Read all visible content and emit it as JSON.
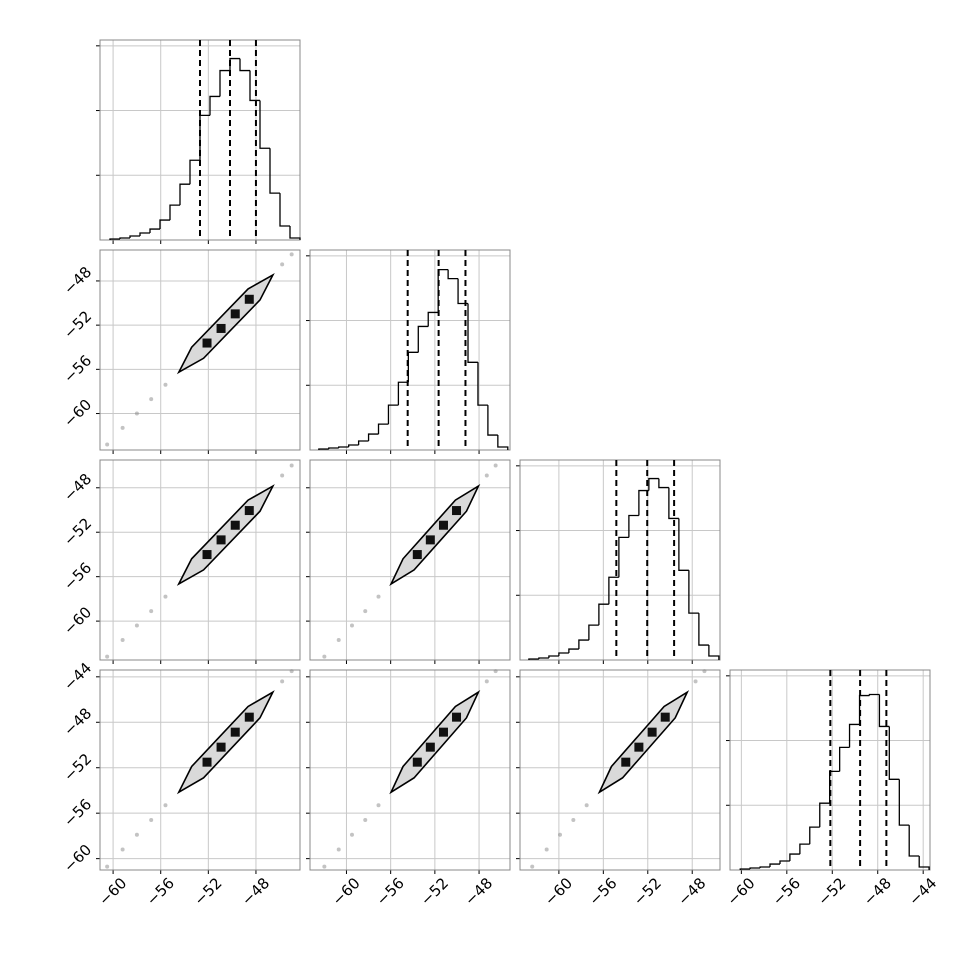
{
  "chart_data": {
    "type": "corner",
    "grid": true,
    "color": "#000000",
    "variables": [
      {
        "lim": [
          -61.1,
          -44.3
        ],
        "ticks": [
          {
            "value": -60,
            "label": "−60"
          },
          {
            "value": -56,
            "label": "−56"
          },
          {
            "value": -52,
            "label": "−52"
          },
          {
            "value": -48,
            "label": "−48"
          }
        ]
      },
      {
        "lim": [
          -63.3,
          -45.2
        ],
        "ticks": [
          {
            "value": -60,
            "label": "−60"
          },
          {
            "value": -56,
            "label": "−56"
          },
          {
            "value": -52,
            "label": "−52"
          },
          {
            "value": -48,
            "label": "−48"
          }
        ]
      },
      {
        "lim": [
          -63.5,
          -45.5
        ],
        "ticks": [
          {
            "value": -60,
            "label": "−60"
          },
          {
            "value": -56,
            "label": "−56"
          },
          {
            "value": -52,
            "label": "−52"
          },
          {
            "value": -48,
            "label": "−48"
          }
        ]
      },
      {
        "lim": [
          -61.0,
          -43.4
        ],
        "ticks": [
          {
            "value": -60,
            "label": "−60"
          },
          {
            "value": -56,
            "label": "−56"
          },
          {
            "value": -52,
            "label": "−52"
          },
          {
            "value": -48,
            "label": "−48"
          },
          {
            "value": -44,
            "label": "−44"
          }
        ]
      }
    ],
    "histograms": [
      {
        "bins": [
          -60.26,
          -59.42,
          -58.58,
          -57.74,
          -56.9,
          -56.06,
          -55.22,
          -54.38,
          -53.54,
          -52.7,
          -51.86,
          -51.02,
          -50.18,
          -49.34,
          -48.5,
          -47.66,
          -46.82,
          -45.98,
          -45.14,
          -44.3
        ],
        "counts": [
          15,
          31,
          62,
          108,
          169,
          308,
          539,
          862,
          1232,
          1925,
          2218,
          2618,
          2803,
          2618,
          2156,
          1417,
          724,
          216,
          31
        ],
        "quantiles": [
          -52.7,
          -50.18,
          -48.0
        ],
        "ylim": [
          0,
          3090
        ],
        "yticks": [
          1000,
          2000,
          3000
        ]
      },
      {
        "bins": [
          -62.5,
          -61.6,
          -60.7,
          -59.8,
          -58.9,
          -58.0,
          -57.1,
          -56.2,
          -55.3,
          -54.4,
          -53.5,
          -52.6,
          -51.7,
          -50.8,
          -49.9,
          -49.0,
          -48.1,
          -47.2,
          -46.3,
          -45.4
        ],
        "counts": [
          15,
          31,
          46,
          77,
          139,
          246,
          400,
          693,
          1047,
          1509,
          1909,
          2125,
          2787,
          2648,
          2264,
          1355,
          693,
          231,
          46
        ],
        "quantiles": [
          -54.46,
          -51.66,
          -49.23
        ],
        "ylim": [
          0,
          3090
        ],
        "yticks": [
          1000,
          2000,
          3000
        ]
      },
      {
        "bins": [
          -62.7,
          -61.8,
          -60.9,
          -60.0,
          -59.1,
          -58.2,
          -57.3,
          -56.4,
          -55.5,
          -54.6,
          -53.7,
          -52.8,
          -51.9,
          -51.0,
          -50.1,
          -49.2,
          -48.3,
          -47.4,
          -46.5,
          -45.6
        ],
        "counts": [
          15,
          31,
          62,
          108,
          169,
          308,
          539,
          862,
          1278,
          1894,
          2233,
          2618,
          2803,
          2664,
          2187,
          1386,
          724,
          231,
          62
        ],
        "quantiles": [
          -54.83,
          -52.05,
          -49.63
        ],
        "ylim": [
          0,
          3090
        ],
        "yticks": [
          1000,
          2000,
          3000
        ]
      },
      {
        "bins": [
          -60.1,
          -59.23,
          -58.35,
          -57.48,
          -56.6,
          -55.73,
          -54.85,
          -53.98,
          -53.1,
          -52.23,
          -51.35,
          -50.48,
          -49.6,
          -48.73,
          -47.85,
          -46.98,
          -46.1,
          -45.23,
          -44.35,
          -43.48
        ],
        "counts": [
          15,
          31,
          46,
          92,
          139,
          246,
          400,
          662,
          1032,
          1524,
          1894,
          2249,
          2695,
          2711,
          2218,
          1401,
          693,
          216,
          46
        ],
        "quantiles": [
          -52.17,
          -49.55,
          -47.24
        ],
        "ylim": [
          0,
          3090
        ],
        "yticks": [
          1000,
          2000,
          3000
        ]
      }
    ],
    "pairs": [
      {
        "contour": {
          "x": [
            -54.48,
            -52.4,
            -50.03,
            -47.66,
            -46.58,
            -48.66,
            -51.03,
            -53.4
          ],
          "y": [
            -56.26,
            -55.0,
            -52.36,
            -49.72,
            -47.46,
            -48.72,
            -51.36,
            -54.0
          ]
        },
        "samples": {
          "x": [
            -60.5,
            -59.2,
            -58.0,
            -56.8,
            -55.6,
            -45.8,
            -45.0
          ],
          "y": [
            -62.8,
            -61.3,
            -60.0,
            -58.7,
            -57.4,
            -46.5,
            -45.6
          ]
        },
        "peaks": {
          "x": [
            -52.11,
            -50.93,
            -49.74,
            -48.56
          ],
          "y": [
            -53.62,
            -52.3,
            -50.98,
            -49.66
          ]
        }
      },
      {
        "contour": {
          "x": [
            -54.48,
            -52.4,
            -50.03,
            -47.66,
            -46.58,
            -48.66,
            -51.03,
            -53.4
          ],
          "y": [
            -56.65,
            -55.39,
            -52.75,
            -50.11,
            -47.85,
            -49.11,
            -51.75,
            -54.39
          ]
        },
        "samples": {
          "x": [
            -60.5,
            -59.2,
            -58.0,
            -56.8,
            -55.6,
            -45.8,
            -45.0
          ],
          "y": [
            -63.2,
            -61.7,
            -60.4,
            -59.1,
            -57.8,
            -46.9,
            -46.0
          ]
        },
        "peaks": {
          "x": [
            -52.11,
            -50.93,
            -49.74,
            -48.56
          ],
          "y": [
            -54.01,
            -52.69,
            -51.37,
            -50.05
          ]
        }
      },
      {
        "contour": {
          "x": [
            -55.96,
            -53.88,
            -51.51,
            -49.14,
            -48.06,
            -50.14,
            -52.51,
            -54.88
          ],
          "y": [
            -56.65,
            -55.39,
            -52.75,
            -50.11,
            -47.85,
            -49.11,
            -51.75,
            -54.39
          ]
        },
        "samples": {
          "x": [
            -62.0,
            -60.7,
            -59.5,
            -58.3,
            -57.1,
            -47.3,
            -46.5
          ],
          "y": [
            -63.2,
            -61.7,
            -60.4,
            -59.1,
            -57.8,
            -46.9,
            -46.0
          ]
        },
        "peaks": {
          "x": [
            -53.59,
            -52.41,
            -51.22,
            -50.04
          ],
          "y": [
            -54.01,
            -52.69,
            -51.37,
            -50.05
          ]
        }
      },
      {
        "contour": {
          "x": [
            -54.48,
            -52.4,
            -50.03,
            -47.66,
            -46.58,
            -48.66,
            -51.03,
            -53.4
          ],
          "y": [
            -54.15,
            -52.89,
            -50.25,
            -47.61,
            -45.35,
            -46.61,
            -49.25,
            -51.89
          ]
        },
        "samples": {
          "x": [
            -60.5,
            -59.2,
            -58.0,
            -56.8,
            -55.6,
            -45.8,
            -45.0
          ],
          "y": [
            -60.7,
            -59.2,
            -57.9,
            -56.6,
            -55.3,
            -44.4,
            -43.5
          ]
        },
        "peaks": {
          "x": [
            -52.11,
            -50.93,
            -49.74,
            -48.56
          ],
          "y": [
            -51.51,
            -50.19,
            -48.87,
            -47.55
          ]
        }
      },
      {
        "contour": {
          "x": [
            -55.96,
            -53.88,
            -51.51,
            -49.14,
            -48.06,
            -50.14,
            -52.51,
            -54.88
          ],
          "y": [
            -54.15,
            -52.89,
            -50.25,
            -47.61,
            -45.35,
            -46.61,
            -49.25,
            -51.89
          ]
        },
        "samples": {
          "x": [
            -62.0,
            -60.7,
            -59.5,
            -58.3,
            -57.1,
            -47.3,
            -46.5
          ],
          "y": [
            -60.7,
            -59.2,
            -57.9,
            -56.6,
            -55.3,
            -44.4,
            -43.5
          ]
        },
        "peaks": {
          "x": [
            -53.59,
            -52.41,
            -51.22,
            -50.04
          ],
          "y": [
            -51.51,
            -50.19,
            -48.87,
            -47.55
          ]
        }
      },
      {
        "contour": {
          "x": [
            -56.35,
            -54.27,
            -51.9,
            -49.53,
            -48.45,
            -50.53,
            -52.9,
            -55.27
          ],
          "y": [
            -54.15,
            -52.89,
            -50.25,
            -47.61,
            -45.35,
            -46.61,
            -49.25,
            -51.89
          ]
        },
        "samples": {
          "x": [
            -62.4,
            -61.1,
            -59.9,
            -58.7,
            -57.5,
            -47.7,
            -46.9
          ],
          "y": [
            -60.7,
            -59.2,
            -57.9,
            -56.6,
            -55.3,
            -44.4,
            -43.5
          ]
        },
        "peaks": {
          "x": [
            -53.98,
            -52.8,
            -51.61,
            -50.43
          ],
          "y": [
            -51.51,
            -50.19,
            -48.87,
            -47.55
          ]
        }
      }
    ]
  }
}
